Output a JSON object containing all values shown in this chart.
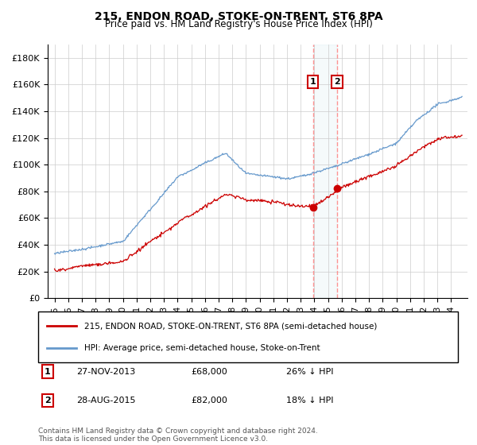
{
  "title": "215, ENDON ROAD, STOKE-ON-TRENT, ST6 8PA",
  "subtitle": "Price paid vs. HM Land Registry's House Price Index (HPI)",
  "ylabel_ticks": [
    "£0",
    "£20K",
    "£40K",
    "£60K",
    "£80K",
    "£100K",
    "£120K",
    "£140K",
    "£160K",
    "£180K"
  ],
  "ytick_values": [
    0,
    20000,
    40000,
    60000,
    80000,
    100000,
    120000,
    140000,
    160000,
    180000
  ],
  "ylim": [
    0,
    190000
  ],
  "legend_label_red": "215, ENDON ROAD, STOKE-ON-TRENT, ST6 8PA (semi-detached house)",
  "legend_label_blue": "HPI: Average price, semi-detached house, Stoke-on-Trent",
  "annotation1_label": "1",
  "annotation1_date": "27-NOV-2013",
  "annotation1_price": "£68,000",
  "annotation1_hpi": "26% ↓ HPI",
  "annotation2_label": "2",
  "annotation2_date": "28-AUG-2015",
  "annotation2_price": "£82,000",
  "annotation2_hpi": "18% ↓ HPI",
  "footer": "Contains HM Land Registry data © Crown copyright and database right 2024.\nThis data is licensed under the Open Government Licence v3.0.",
  "red_color": "#cc0000",
  "blue_color": "#6699cc",
  "vline_color": "#ff8888",
  "box_color": "#cc0000",
  "sale1_year": 2013.9,
  "sale2_year": 2015.67,
  "sale1_price": 68000,
  "sale2_price": 82000
}
